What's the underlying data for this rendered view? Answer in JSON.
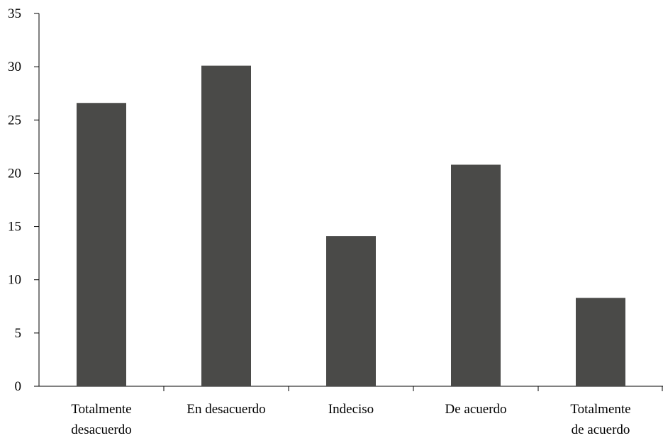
{
  "chart_data": {
    "type": "bar",
    "title": "",
    "xlabel": "",
    "ylabel": "",
    "categories": [
      [
        "Totalmente",
        "desacuerdo"
      ],
      [
        "En desacuerdo"
      ],
      [
        "Indeciso"
      ],
      [
        "De acuerdo"
      ],
      [
        "Totalmente",
        "de acuerdo"
      ]
    ],
    "values": [
      26.6,
      30.1,
      14.1,
      20.8,
      8.3
    ],
    "ylim": [
      0,
      35
    ],
    "yticks": [
      "0",
      "5",
      "10",
      "15",
      "20",
      "25",
      "30",
      "35"
    ],
    "grid": false,
    "bar_color": "#4a4a48"
  }
}
